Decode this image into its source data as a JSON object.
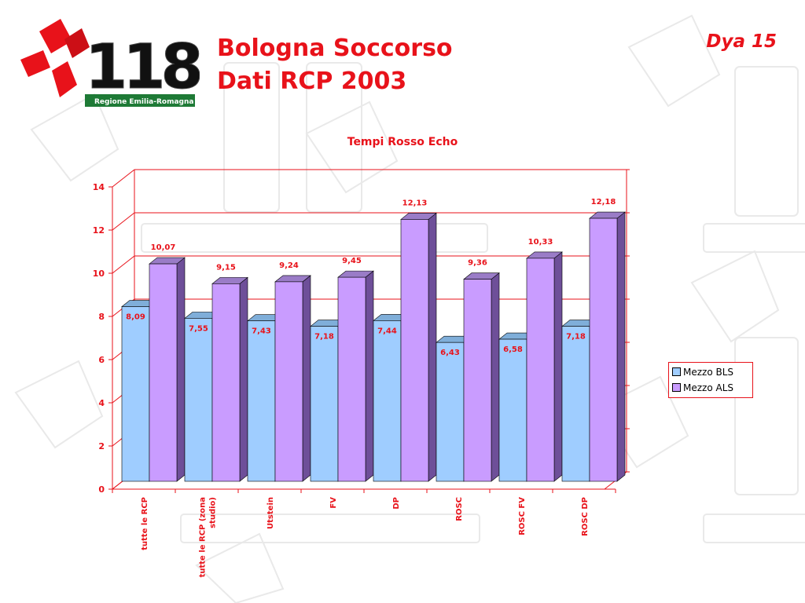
{
  "header": {
    "title_line1": "Bologna Soccorso",
    "title_line2": "Dati RCP 2003",
    "slide_label": "Dya 15"
  },
  "logo": {
    "number_text": "118",
    "region_text": "Regione Emilia-Romagna"
  },
  "colors": {
    "accent": "#e8121a",
    "bls": "#9fcdff",
    "als": "#c99cff"
  },
  "chart_data": {
    "type": "bar",
    "title": "Tempi Rosso Echo",
    "categories": [
      "tutte le RCP",
      "tutte le RCP (zona studio)",
      "Utstein",
      "FV",
      "DP",
      "ROSC",
      "ROSC FV",
      "ROSC DP"
    ],
    "series": [
      {
        "name": "Mezzo BLS",
        "values": [
          8.09,
          7.55,
          7.43,
          7.18,
          7.44,
          6.43,
          6.58,
          7.18
        ],
        "labels": [
          "8,09",
          "7,55",
          "7,43",
          "7,18",
          "7,44",
          "6,43",
          "6,58",
          "7,18"
        ]
      },
      {
        "name": "Mezzo ALS",
        "values": [
          10.07,
          9.15,
          9.24,
          9.45,
          12.13,
          9.36,
          10.33,
          12.18
        ],
        "labels": [
          "10,07",
          "9,15",
          "9,24",
          "9,45",
          "12,13",
          "9,36",
          "10,33",
          "12,18"
        ]
      }
    ],
    "ylim": [
      0,
      14
    ],
    "yticks": [
      0,
      2,
      4,
      6,
      8,
      10,
      12,
      14
    ],
    "grid": true,
    "legend_position": "right"
  }
}
